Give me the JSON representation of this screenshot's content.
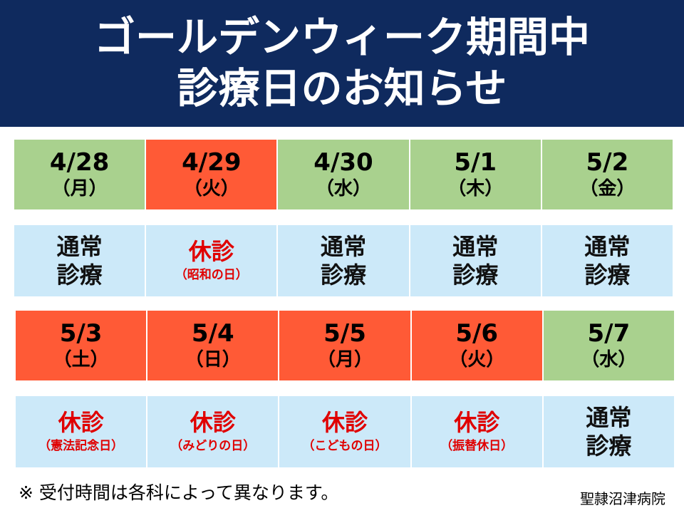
{
  "header": {
    "title_lines": [
      "ゴールデンウィーク期間中",
      "診療日のお知らせ"
    ]
  },
  "tables": [
    {
      "days": [
        {
          "date": "4/28",
          "weekday": "（月）",
          "color": "#a9d18e",
          "status_lines": [
            "通常",
            "診療"
          ],
          "status_color": "#111111"
        },
        {
          "date": "4/29",
          "weekday": "（火）",
          "color": "#ff5a36",
          "status_lines": [
            "休診"
          ],
          "note": "（昭和の日）",
          "status_color": "#e00000"
        },
        {
          "date": "4/30",
          "weekday": "（水）",
          "color": "#a9d18e",
          "status_lines": [
            "通常",
            "診療"
          ],
          "status_color": "#111111"
        },
        {
          "date": "5/1",
          "weekday": "（木）",
          "color": "#a9d18e",
          "status_lines": [
            "通常",
            "診療"
          ],
          "status_color": "#111111"
        },
        {
          "date": "5/2",
          "weekday": "（金）",
          "color": "#a9d18e",
          "status_lines": [
            "通常",
            "診療"
          ],
          "status_color": "#111111"
        }
      ]
    },
    {
      "days": [
        {
          "date": "5/3",
          "weekday": "（土）",
          "color": "#ff5a36",
          "status_lines": [
            "休診"
          ],
          "note": "（憲法記念日）",
          "status_color": "#e00000"
        },
        {
          "date": "5/4",
          "weekday": "（日）",
          "color": "#ff5a36",
          "status_lines": [
            "休診"
          ],
          "note": "（みどりの日）",
          "status_color": "#e00000"
        },
        {
          "date": "5/5",
          "weekday": "（月）",
          "color": "#ff5a36",
          "status_lines": [
            "休診"
          ],
          "note": "（こどもの日）",
          "status_color": "#e00000"
        },
        {
          "date": "5/6",
          "weekday": "（火）",
          "color": "#ff5a36",
          "status_lines": [
            "休診"
          ],
          "note": "（振替休日）",
          "status_color": "#e00000"
        },
        {
          "date": "5/7",
          "weekday": "（水）",
          "color": "#a9d18e",
          "status_lines": [
            "通常",
            "診療"
          ],
          "status_color": "#111111"
        }
      ]
    }
  ],
  "footer": {
    "note": "※ 受付時間は各科によって異なります。",
    "hospital": "聖隷沼津病院"
  }
}
